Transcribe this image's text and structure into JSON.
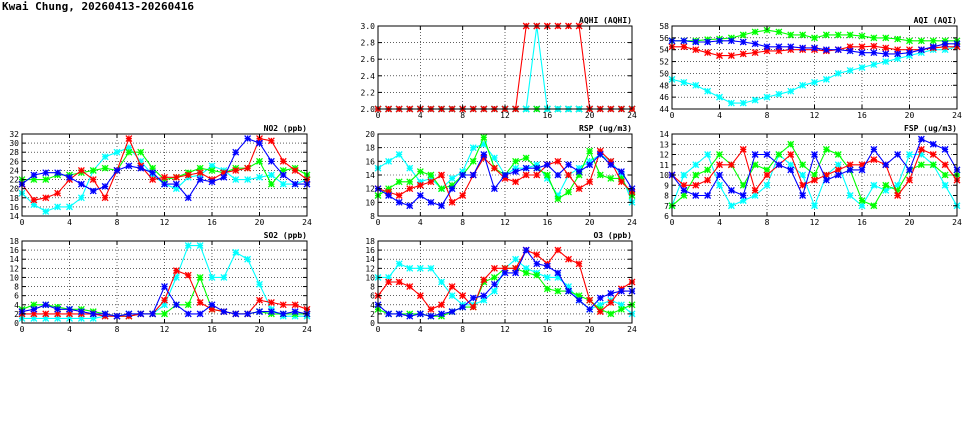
{
  "page": {
    "title": "Kwai Chung, 20260413-20260416"
  },
  "series_colors": [
    "#ff0000",
    "#00ffff",
    "#00ff00",
    "#0000ff"
  ],
  "chart_data": [
    {
      "id": "aqhi",
      "type": "line",
      "title": "AQHI (AQHI)",
      "xlim": [
        0,
        24
      ],
      "ylim": [
        2,
        3
      ],
      "xticks": [
        0,
        4,
        8,
        12,
        16,
        20,
        24
      ],
      "yticks": [
        2,
        2.2,
        2.4,
        2.6,
        2.8,
        3
      ],
      "ydecimals": 1,
      "grid": true,
      "series": [
        {
          "color": "#0000ff",
          "values": [
            2,
            2,
            2,
            2,
            2,
            2,
            2,
            2,
            2,
            2,
            2,
            2,
            2,
            2,
            2,
            2,
            2,
            2,
            2,
            2,
            2,
            2,
            2,
            2,
            2
          ]
        },
        {
          "color": "#00ff00",
          "values": [
            2,
            2,
            2,
            2,
            2,
            2,
            2,
            2,
            2,
            2,
            2,
            2,
            2,
            2,
            2,
            2,
            2,
            2,
            2,
            2,
            2,
            2,
            2,
            2,
            2
          ]
        },
        {
          "color": "#00ffff",
          "values": [
            2,
            2,
            2,
            2,
            2,
            2,
            2,
            2,
            2,
            2,
            2,
            2,
            2,
            2,
            2,
            3,
            2,
            2,
            2,
            2,
            2,
            2,
            2,
            2,
            2
          ]
        },
        {
          "color": "#ff0000",
          "values": [
            2,
            2,
            2,
            2,
            2,
            2,
            2,
            2,
            2,
            2,
            2,
            2,
            2,
            2,
            3,
            3,
            3,
            3,
            3,
            3,
            2,
            2,
            2,
            2,
            2
          ]
        }
      ]
    },
    {
      "id": "aqi",
      "type": "line",
      "title": "AQI (AQI)",
      "xlim": [
        0,
        24
      ],
      "ylim": [
        44,
        58
      ],
      "xticks": [
        0,
        4,
        8,
        12,
        16,
        20,
        24
      ],
      "yticks": [
        44,
        46,
        48,
        50,
        52,
        54,
        56,
        58
      ],
      "ydecimals": 0,
      "grid": true,
      "series": [
        {
          "color": "#00ffff",
          "values": [
            49,
            48.5,
            48,
            47,
            46,
            45,
            45,
            45.5,
            46,
            46.5,
            47,
            48,
            48.5,
            49,
            50,
            50.5,
            51,
            51.5,
            52,
            52.5,
            53,
            53.5,
            54,
            54,
            54.5
          ]
        },
        {
          "color": "#00ff00",
          "values": [
            55.5,
            55.5,
            55.5,
            55.7,
            55.8,
            56,
            56.5,
            57,
            57.3,
            57,
            56.5,
            56.5,
            56,
            56.5,
            56.5,
            56.5,
            56.3,
            56,
            56,
            55.8,
            55.5,
            55.5,
            55.5,
            55.5,
            55.5
          ]
        },
        {
          "color": "#ff0000",
          "values": [
            54.5,
            54.5,
            54,
            53.5,
            53,
            53,
            53.3,
            53.5,
            53.8,
            53.8,
            54,
            54,
            54,
            53.8,
            54,
            54.5,
            54.5,
            54.6,
            54.3,
            54,
            54,
            54,
            54.3,
            54.5,
            54.5
          ]
        },
        {
          "color": "#0000ff",
          "values": [
            55.5,
            55.5,
            55.3,
            55.3,
            55.5,
            55.5,
            55.3,
            55,
            54.5,
            54.5,
            54.5,
            54.3,
            54.3,
            54,
            54,
            53.8,
            53.5,
            53.5,
            53.3,
            53.3,
            53.5,
            54,
            54.5,
            55,
            55
          ]
        }
      ]
    },
    {
      "id": "no2",
      "type": "line",
      "title": "NO2 (ppb)",
      "xlim": [
        0,
        24
      ],
      "ylim": [
        14,
        32
      ],
      "xticks": [
        0,
        4,
        8,
        12,
        16,
        20,
        24
      ],
      "yticks": [
        14,
        16,
        18,
        20,
        22,
        24,
        26,
        28,
        30,
        32
      ],
      "ydecimals": 0,
      "grid": true,
      "series": [
        {
          "color": "#00ffff",
          "values": [
            19,
            16.5,
            15,
            16,
            16,
            18,
            24,
            27,
            28,
            29,
            26,
            23,
            21,
            20,
            22.5,
            23,
            25,
            24,
            22,
            22,
            22.5,
            23,
            21,
            21,
            22
          ]
        },
        {
          "color": "#00ff00",
          "values": [
            22,
            22,
            22,
            23,
            23,
            23.5,
            24,
            24.5,
            24,
            28,
            28,
            24.5,
            22,
            22.5,
            23.5,
            24.5,
            24,
            23.5,
            24.5,
            24.5,
            26,
            21,
            24,
            24.5,
            23
          ]
        },
        {
          "color": "#ff0000",
          "values": [
            21,
            17.5,
            18,
            19,
            22,
            24,
            22,
            18,
            24,
            31,
            25,
            22,
            22.5,
            22.5,
            23,
            23.5,
            22,
            23.5,
            24,
            24.5,
            31,
            30.5,
            26,
            24,
            22
          ]
        },
        {
          "color": "#0000ff",
          "values": [
            21,
            23,
            23.5,
            23.5,
            22.5,
            21,
            19.5,
            20.5,
            24,
            25,
            24.5,
            23.5,
            21,
            21,
            18,
            22,
            21.5,
            22.5,
            28,
            31,
            30,
            26,
            23,
            21,
            21
          ]
        }
      ]
    },
    {
      "id": "rsp",
      "type": "line",
      "title": "RSP (ug/m3)",
      "xlim": [
        0,
        24
      ],
      "ylim": [
        8,
        20
      ],
      "xticks": [
        0,
        4,
        8,
        12,
        16,
        20,
        24
      ],
      "yticks": [
        8,
        10,
        12,
        14,
        16,
        18,
        20
      ],
      "ydecimals": 0,
      "grid": true,
      "series": [
        {
          "color": "#00ffff",
          "values": [
            15,
            16,
            17,
            15,
            13,
            13.5,
            12,
            13.5,
            14.5,
            18,
            18.5,
            16.5,
            14,
            15,
            15,
            15.5,
            13.5,
            11,
            14,
            15,
            16,
            17,
            16,
            14,
            10
          ]
        },
        {
          "color": "#00ff00",
          "values": [
            11,
            12,
            13,
            13,
            14.5,
            14,
            12,
            12.5,
            14,
            16,
            19.5,
            15,
            14,
            16,
            16.5,
            15,
            14,
            10.5,
            11.5,
            14,
            17.5,
            14,
            13.5,
            13.5,
            11
          ]
        },
        {
          "color": "#ff0000",
          "values": [
            12,
            11.5,
            11,
            12,
            12.5,
            13,
            14,
            10,
            11,
            14,
            16.5,
            15,
            13.5,
            13,
            14,
            14,
            15.5,
            16,
            14,
            12,
            13,
            17.5,
            16,
            13,
            11.5
          ]
        },
        {
          "color": "#0000ff",
          "values": [
            12,
            11,
            10,
            9.5,
            11,
            10,
            9.5,
            12,
            14,
            14,
            17,
            12,
            14,
            14.5,
            15,
            15,
            15.5,
            14,
            15.5,
            14.5,
            15.5,
            17,
            15.5,
            14.5,
            12
          ]
        }
      ]
    },
    {
      "id": "fsp",
      "type": "line",
      "title": "FSP (ug/m3)",
      "xlim": [
        0,
        24
      ],
      "ylim": [
        6,
        14
      ],
      "xticks": [
        0,
        4,
        8,
        12,
        16,
        20,
        24
      ],
      "yticks": [
        6,
        7,
        8,
        9,
        10,
        11,
        12,
        13,
        14
      ],
      "ydecimals": 0,
      "grid": true,
      "series": [
        {
          "color": "#00ffff",
          "values": [
            7,
            10,
            11,
            12,
            9,
            7,
            7.5,
            8,
            9,
            12,
            11,
            10,
            7,
            10,
            11,
            8,
            7,
            9,
            8.5,
            9,
            12,
            12,
            11,
            9,
            7
          ]
        },
        {
          "color": "#00ff00",
          "values": [
            7,
            8,
            10,
            10.5,
            12,
            11,
            9,
            11,
            10.5,
            12,
            13,
            11,
            10,
            12.5,
            12,
            10.5,
            7.5,
            7,
            9,
            8.5,
            10.5,
            11,
            11,
            10,
            10
          ]
        },
        {
          "color": "#ff0000",
          "values": [
            10,
            9,
            9,
            9.5,
            11,
            11,
            12.5,
            8.5,
            10,
            11,
            12,
            9,
            9.5,
            10,
            10.5,
            11,
            11,
            11.5,
            11,
            8,
            9.5,
            12.5,
            12,
            11,
            9.5
          ]
        },
        {
          "color": "#0000ff",
          "values": [
            10,
            8.5,
            8,
            8,
            10,
            8.5,
            8,
            12,
            12,
            11,
            10.5,
            8,
            12,
            9.5,
            10,
            10.5,
            10.5,
            12.5,
            11,
            12,
            10.5,
            13.5,
            13,
            12.5,
            10.5
          ]
        }
      ]
    },
    {
      "id": "so2",
      "type": "line",
      "title": "SO2 (ppb)",
      "xlim": [
        0,
        24
      ],
      "ylim": [
        0,
        18
      ],
      "xticks": [
        0,
        4,
        8,
        12,
        16,
        20,
        24
      ],
      "yticks": [
        0,
        2,
        4,
        6,
        8,
        10,
        12,
        14,
        16,
        18
      ],
      "ydecimals": 0,
      "grid": true,
      "series": [
        {
          "color": "#00ffff",
          "values": [
            1,
            1,
            1,
            1,
            1,
            1,
            1,
            1.5,
            1.5,
            2,
            2,
            2,
            4,
            10,
            17,
            17,
            10,
            10,
            15.5,
            14,
            8.5,
            3,
            1.5,
            1.5,
            1.5
          ]
        },
        {
          "color": "#00ff00",
          "values": [
            3,
            4,
            4,
            3.5,
            3,
            3,
            2.5,
            2,
            1.5,
            1.5,
            2,
            2,
            2,
            4,
            4,
            10,
            3,
            2.5,
            2,
            2,
            2.5,
            2,
            2,
            2,
            2
          ]
        },
        {
          "color": "#ff0000",
          "values": [
            2,
            2,
            2,
            2,
            2,
            2,
            2,
            1.5,
            1.5,
            1.5,
            2,
            2,
            5,
            11.5,
            10.5,
            4.5,
            3,
            2.5,
            2,
            2,
            5,
            4.5,
            4,
            4,
            3
          ]
        },
        {
          "color": "#0000ff",
          "values": [
            2.5,
            3,
            4,
            3,
            3,
            2.5,
            2,
            2,
            1.5,
            2,
            2,
            2,
            8,
            4,
            2,
            2,
            4,
            2.5,
            2,
            2,
            2.5,
            2.5,
            2,
            2.5,
            2
          ]
        }
      ]
    },
    {
      "id": "o3",
      "type": "line",
      "title": "O3 (ppb)",
      "xlim": [
        0,
        24
      ],
      "ylim": [
        0,
        18
      ],
      "xticks": [
        0,
        4,
        8,
        12,
        16,
        20,
        24
      ],
      "yticks": [
        0,
        2,
        4,
        6,
        8,
        10,
        12,
        14,
        16,
        18
      ],
      "ydecimals": 0,
      "grid": true,
      "series": [
        {
          "color": "#00ffff",
          "values": [
            10,
            10,
            13,
            12,
            12,
            12,
            9,
            6,
            4,
            4,
            5,
            7,
            12,
            14,
            12,
            11,
            10,
            10,
            8,
            5,
            3,
            4,
            5,
            4,
            2
          ]
        },
        {
          "color": "#00ff00",
          "values": [
            3,
            2,
            2,
            2,
            2,
            1.5,
            1.5,
            2.5,
            3.5,
            3.5,
            9,
            10,
            12,
            12,
            11,
            10.5,
            7.5,
            7,
            7,
            6,
            5,
            3,
            2,
            3,
            4
          ]
        },
        {
          "color": "#ff0000",
          "values": [
            6,
            9,
            9,
            8,
            6,
            3,
            4,
            8,
            6,
            3.5,
            9.5,
            12,
            12,
            12,
            16,
            15,
            13,
            16,
            14,
            13,
            5,
            2.5,
            4.5,
            7.5,
            9
          ]
        },
        {
          "color": "#0000ff",
          "values": [
            4,
            2,
            2,
            1.5,
            2,
            1.5,
            2,
            2.5,
            3.5,
            5.5,
            6,
            8.5,
            11,
            11,
            16,
            13,
            12.5,
            11,
            7,
            5,
            3,
            5.5,
            6.5,
            7,
            7
          ]
        }
      ]
    }
  ]
}
